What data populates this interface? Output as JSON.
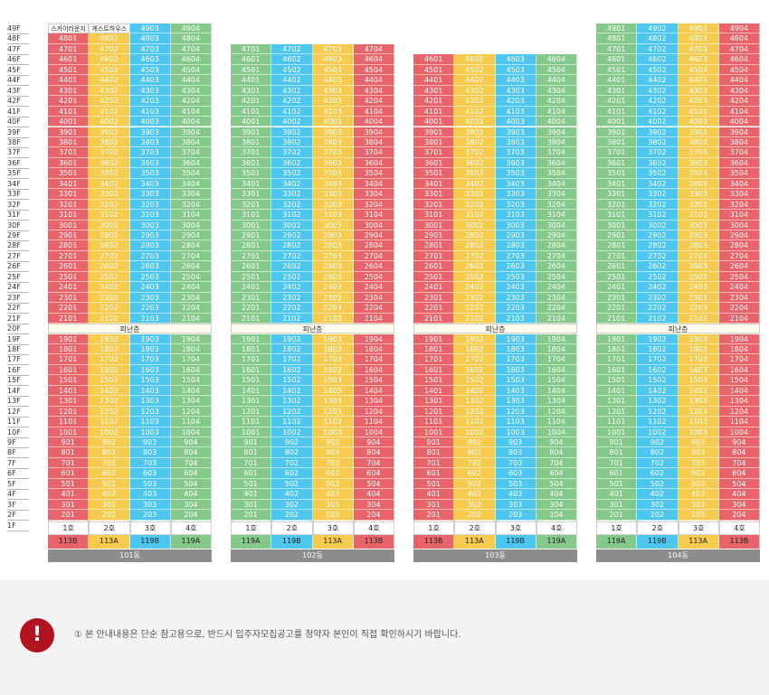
{
  "floor_labels": [
    "49F",
    "48F",
    "47F",
    "46F",
    "45F",
    "44F",
    "43F",
    "42F",
    "41F",
    "40F",
    "39F",
    "38F",
    "37F",
    "36F",
    "35F",
    "34F",
    "33F",
    "32F",
    "31F",
    "30F",
    "29F",
    "28F",
    "27F",
    "26F",
    "25F",
    "24F",
    "23F",
    "22F",
    "21F",
    "20F",
    "19F",
    "18F",
    "17F",
    "16F",
    "15F",
    "14F",
    "13F",
    "12F",
    "11F",
    "10F",
    "9F",
    "8F",
    "7F",
    "6F",
    "5F",
    "4F",
    "3F",
    "2F",
    "1F"
  ],
  "refuge_floor_label": "피난층",
  "ho_labels": [
    "1호",
    "2호",
    "3호",
    "4호"
  ],
  "special_units": {
    "4901": "스카이라운지",
    "4902": "게스트하우스"
  },
  "buildings": [
    {
      "name": "101동",
      "top_floor": 49,
      "types": [
        "113B",
        "113A",
        "119B",
        "119A"
      ],
      "color_order": [
        0,
        1,
        2,
        3
      ]
    },
    {
      "name": "102동",
      "top_floor": 47,
      "types": [
        "119A",
        "119B",
        "113A",
        "113B"
      ],
      "color_order": [
        3,
        2,
        1,
        0
      ]
    },
    {
      "name": "103동",
      "top_floor": 46,
      "types": [
        "113B",
        "113A",
        "119B",
        "119A"
      ],
      "color_order": [
        0,
        1,
        2,
        3
      ]
    },
    {
      "name": "104동",
      "top_floor": 49,
      "types": [
        "119A",
        "119B",
        "113A",
        "113B"
      ],
      "color_order": [
        3,
        2,
        1,
        0
      ]
    }
  ],
  "colors": {
    "red": "#e8646a",
    "yellow": "#f7cb4d",
    "blue": "#4ec7f0",
    "green": "#85c98a",
    "alert": "#b3121f"
  },
  "notice": {
    "icon": "exclamation-icon",
    "text": "① 본 안내내용은 단순 참고용으로, 반드시 입주자모집공고를 청약자 본인이 직접 확인하시기 바랍니다."
  }
}
